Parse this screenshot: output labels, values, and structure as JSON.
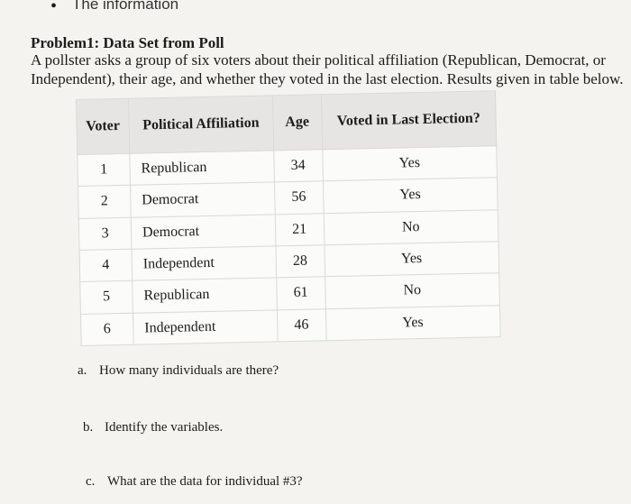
{
  "header": {
    "bullet": "•",
    "truncated_text": "The information"
  },
  "problem": {
    "title": "Problem1: Data Set from Poll",
    "description": "A pollster asks a group of six voters about their political affiliation (Republican, Democrat, or Independent), their age, and whether they voted in the last election. Results given in table below."
  },
  "table": {
    "headers": {
      "voter": "Voter",
      "affiliation": "Political Affiliation",
      "age": "Age",
      "voted": "Voted in Last Election?"
    },
    "rows": [
      {
        "voter": "1",
        "affiliation": "Republican",
        "age": "34",
        "voted": "Yes"
      },
      {
        "voter": "2",
        "affiliation": "Democrat",
        "age": "56",
        "voted": "Yes"
      },
      {
        "voter": "3",
        "affiliation": "Democrat",
        "age": "21",
        "voted": "No"
      },
      {
        "voter": "4",
        "affiliation": "Independent",
        "age": "28",
        "voted": "Yes"
      },
      {
        "voter": "5",
        "affiliation": "Republican",
        "age": "61",
        "voted": "No"
      },
      {
        "voter": "6",
        "affiliation": "Independent",
        "age": "46",
        "voted": "Yes"
      }
    ]
  },
  "questions": [
    {
      "letter": "a.",
      "text": "How many individuals are there?"
    },
    {
      "letter": "b.",
      "text": "Identify the variables."
    },
    {
      "letter": "c.",
      "text": "What are the data for individual #3?"
    }
  ]
}
